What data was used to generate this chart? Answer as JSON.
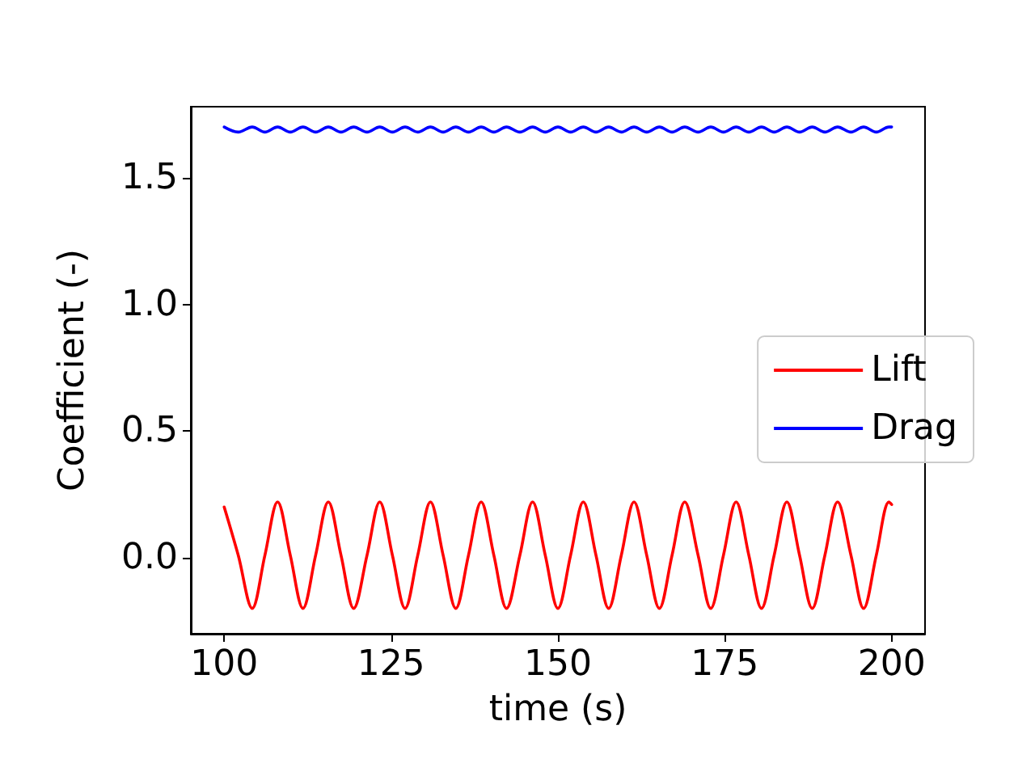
{
  "chart_data": {
    "type": "line",
    "xlabel": "time (s)",
    "ylabel": "Coefficient (-)",
    "x": [
      100,
      102.1,
      104.2,
      106.1,
      108.0,
      109.9,
      111.8,
      113.7,
      115.6,
      117.5,
      119.4,
      121.4,
      123.3,
      125.2,
      127.1,
      129.0,
      130.9,
      132.8,
      134.7,
      136.6,
      138.5,
      140.4,
      142.3,
      144.3,
      146.2,
      148.1,
      150.0,
      151.9,
      153.8,
      155.7,
      157.6,
      159.5,
      161.4,
      163.3,
      165.2,
      167.1,
      169.0,
      171.0,
      172.9,
      174.8,
      176.7,
      178.6,
      180.5,
      182.4,
      184.3,
      186.2,
      188.1,
      190.0,
      191.9,
      193.9,
      195.8,
      197.7,
      199.6,
      200
    ],
    "series": [
      {
        "name": "Lift",
        "color": "#ff0000",
        "values": [
          0.2,
          0.01,
          -0.2,
          0.01,
          0.22,
          0.01,
          -0.2,
          0.01,
          0.22,
          0.01,
          -0.2,
          0.01,
          0.22,
          0.01,
          -0.2,
          0.01,
          0.22,
          0.01,
          -0.2,
          0.01,
          0.22,
          0.01,
          -0.2,
          0.01,
          0.22,
          0.01,
          -0.2,
          0.01,
          0.22,
          0.01,
          -0.2,
          0.01,
          0.22,
          0.01,
          -0.2,
          0.01,
          0.22,
          0.01,
          -0.2,
          0.01,
          0.22,
          0.01,
          -0.2,
          0.01,
          0.22,
          0.01,
          -0.2,
          0.01,
          0.22,
          0.01,
          -0.2,
          0.01,
          0.22,
          0.21
        ]
      },
      {
        "name": "Drag",
        "color": "#0000ff",
        "values": [
          1.7,
          1.68,
          1.7,
          1.68,
          1.7,
          1.68,
          1.7,
          1.68,
          1.7,
          1.68,
          1.7,
          1.68,
          1.7,
          1.68,
          1.7,
          1.68,
          1.7,
          1.68,
          1.7,
          1.68,
          1.7,
          1.68,
          1.7,
          1.68,
          1.7,
          1.68,
          1.7,
          1.68,
          1.7,
          1.68,
          1.7,
          1.68,
          1.7,
          1.68,
          1.7,
          1.68,
          1.7,
          1.68,
          1.7,
          1.68,
          1.7,
          1.68,
          1.7,
          1.68,
          1.7,
          1.68,
          1.7,
          1.68,
          1.7,
          1.68,
          1.7,
          1.68,
          1.7,
          1.7
        ]
      }
    ],
    "xlim": [
      95,
      205
    ],
    "xticks": [
      100,
      125,
      150,
      175,
      200
    ],
    "ylim": [
      -0.3,
      1.78
    ],
    "yticks": [
      {
        "value": 0,
        "label": "0.0"
      },
      {
        "value": 0.5,
        "label": "0.5"
      },
      {
        "value": 1,
        "label": "1.0"
      },
      {
        "value": 1.5,
        "label": "1.5"
      }
    ],
    "legend": "right",
    "grid": false,
    "line_style": "solid",
    "marker": "none"
  }
}
